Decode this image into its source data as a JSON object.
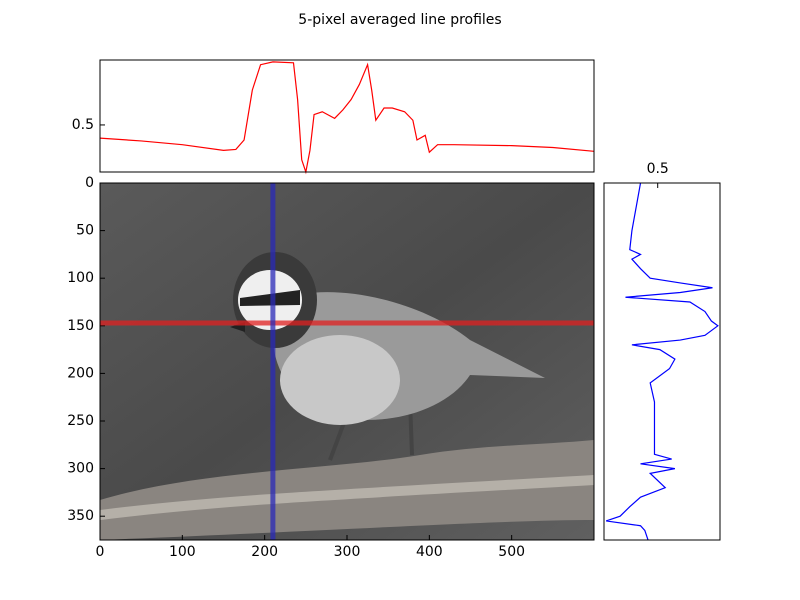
{
  "chart_data": [
    {
      "type": "line",
      "title": "5-pixel averaged line profiles",
      "color": "#ff0000",
      "x": [
        0,
        50,
        100,
        150,
        165,
        175,
        185,
        195,
        210,
        235,
        240,
        245,
        250,
        255,
        260,
        270,
        285,
        295,
        305,
        315,
        325,
        330,
        335,
        345,
        355,
        370,
        380,
        385,
        395,
        400,
        410,
        430,
        500,
        550,
        600
      ],
      "values": [
        0.36,
        0.33,
        0.29,
        0.23,
        0.24,
        0.34,
        0.87,
        1.14,
        1.17,
        1.16,
        0.77,
        0.13,
        0.0,
        0.23,
        0.61,
        0.64,
        0.57,
        0.66,
        0.77,
        0.93,
        1.14,
        0.87,
        0.55,
        0.68,
        0.68,
        0.64,
        0.55,
        0.34,
        0.39,
        0.21,
        0.29,
        0.29,
        0.28,
        0.26,
        0.22
      ],
      "xlim": [
        0,
        600
      ],
      "ylim": [
        0,
        1.19
      ],
      "yticks": [
        0.5
      ]
    },
    {
      "type": "image",
      "xlim": [
        0,
        600
      ],
      "ylim": [
        375,
        0
      ],
      "xticks": [
        0,
        100,
        200,
        300,
        400,
        500
      ],
      "yticks": [
        0,
        50,
        100,
        150,
        200,
        250,
        300,
        350
      ],
      "hline": {
        "value": 147,
        "color": "#e02020"
      },
      "vline": {
        "value": 210,
        "color": "#2a2ab8"
      }
    },
    {
      "type": "line",
      "orientation": "vertical",
      "color": "#0000ff",
      "y": [
        0,
        50,
        70,
        75,
        80,
        90,
        100,
        105,
        110,
        115,
        120,
        125,
        135,
        145,
        150,
        160,
        165,
        170,
        175,
        185,
        195,
        210,
        230,
        260,
        285,
        290,
        295,
        300,
        305,
        320,
        330,
        340,
        350,
        355,
        360,
        365,
        375
      ],
      "values": [
        0.34,
        0.26,
        0.24,
        0.34,
        0.26,
        0.34,
        0.43,
        0.71,
        1.01,
        0.71,
        0.2,
        0.8,
        0.94,
        1.0,
        1.06,
        0.94,
        0.71,
        0.26,
        0.52,
        0.66,
        0.61,
        0.43,
        0.47,
        0.47,
        0.47,
        0.63,
        0.34,
        0.66,
        0.43,
        0.57,
        0.34,
        0.24,
        0.15,
        0.02,
        0.34,
        0.38,
        0.41
      ],
      "xlim": [
        0,
        1.08
      ],
      "ylim": [
        375,
        0
      ],
      "xticks": [
        0.5
      ]
    }
  ]
}
